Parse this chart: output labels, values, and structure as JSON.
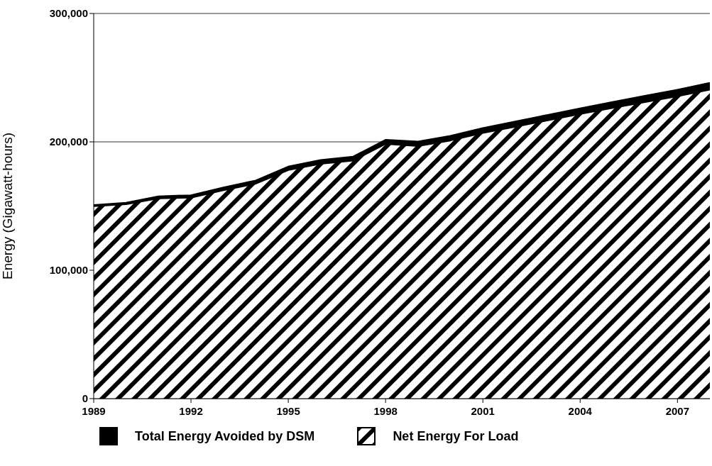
{
  "chart_data": {
    "type": "area",
    "stacked": true,
    "ylabel": "Energy (Gigawatt-hours)",
    "x": [
      1989,
      1990,
      1991,
      1992,
      1993,
      1994,
      1995,
      1996,
      1997,
      1998,
      1999,
      2000,
      2001,
      2002,
      2003,
      2004,
      2005,
      2006,
      2007,
      2008
    ],
    "series": [
      {
        "name": "Net Energy For Load",
        "color": "#000000",
        "values": [
          150100,
          151600,
          156200,
          156800,
          162500,
          167700,
          178300,
          183200,
          185600,
          198600,
          197000,
          201300,
          207100,
          212000,
          217000,
          221900,
          226600,
          231200,
          235800,
          240900
        ]
      },
      {
        "name": "Total Energy Avoided by DSM",
        "color": "#000000",
        "values": [
          500,
          800,
          1100,
          1400,
          1700,
          2000,
          2200,
          2400,
          2600,
          2800,
          3000,
          3200,
          3400,
          3600,
          3800,
          4000,
          4200,
          4400,
          4600,
          4800
        ]
      }
    ],
    "xlim": [
      1989,
      2008
    ],
    "xticks": [
      1989,
      1992,
      1995,
      1998,
      2001,
      2004,
      2007
    ],
    "ylim": [
      0,
      300000
    ],
    "yticks": [
      0,
      {
        "value": 100000,
        "label": "100,000"
      },
      {
        "value": 200000,
        "label": "200,000"
      },
      {
        "value": 300000,
        "label": "300,000"
      }
    ],
    "grid": "y",
    "legend": "bottom"
  }
}
